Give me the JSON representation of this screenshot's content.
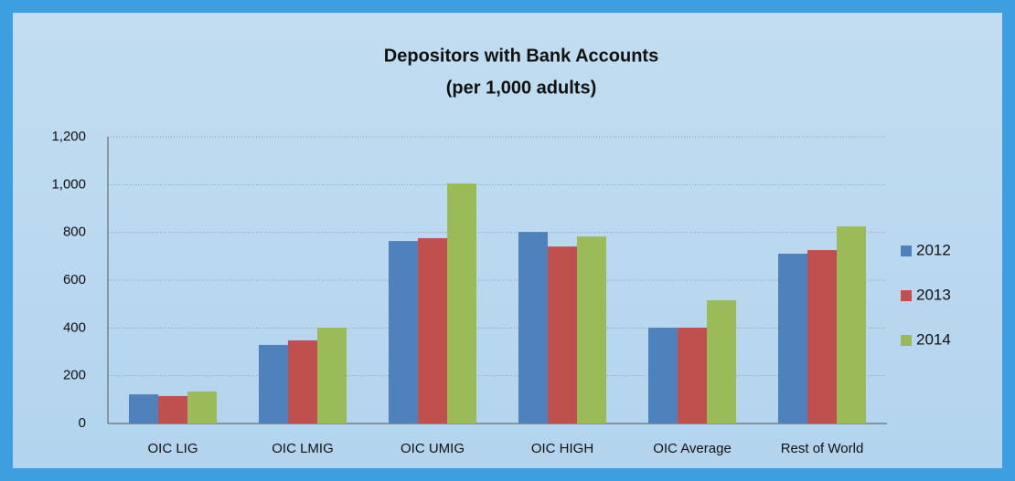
{
  "chart_data": {
    "type": "bar",
    "title": "Depositors with Bank Accounts",
    "subtitle": "(per 1,000 adults)",
    "categories": [
      "OIC LIG",
      "OIC LMIG",
      "OIC UMIG",
      "OIC HIGH",
      "OIC Average",
      "Rest of World"
    ],
    "series": [
      {
        "name": "2012",
        "color": "#4f81bd",
        "values": [
          122,
          329,
          764,
          802,
          401,
          711
        ]
      },
      {
        "name": "2013",
        "color": "#c0504d",
        "values": [
          115,
          348,
          776,
          741,
          401,
          726
        ]
      },
      {
        "name": "2014",
        "color": "#9bbb59",
        "values": [
          134,
          401,
          1005,
          783,
          516,
          825
        ]
      }
    ],
    "ylim": [
      0,
      1200
    ],
    "yticks": [
      0,
      200,
      400,
      600,
      800,
      {
        "value": 1000,
        "label": "1,000"
      },
      {
        "value": 1200,
        "label": "1,200"
      }
    ],
    "grid": true,
    "legend": "right"
  }
}
